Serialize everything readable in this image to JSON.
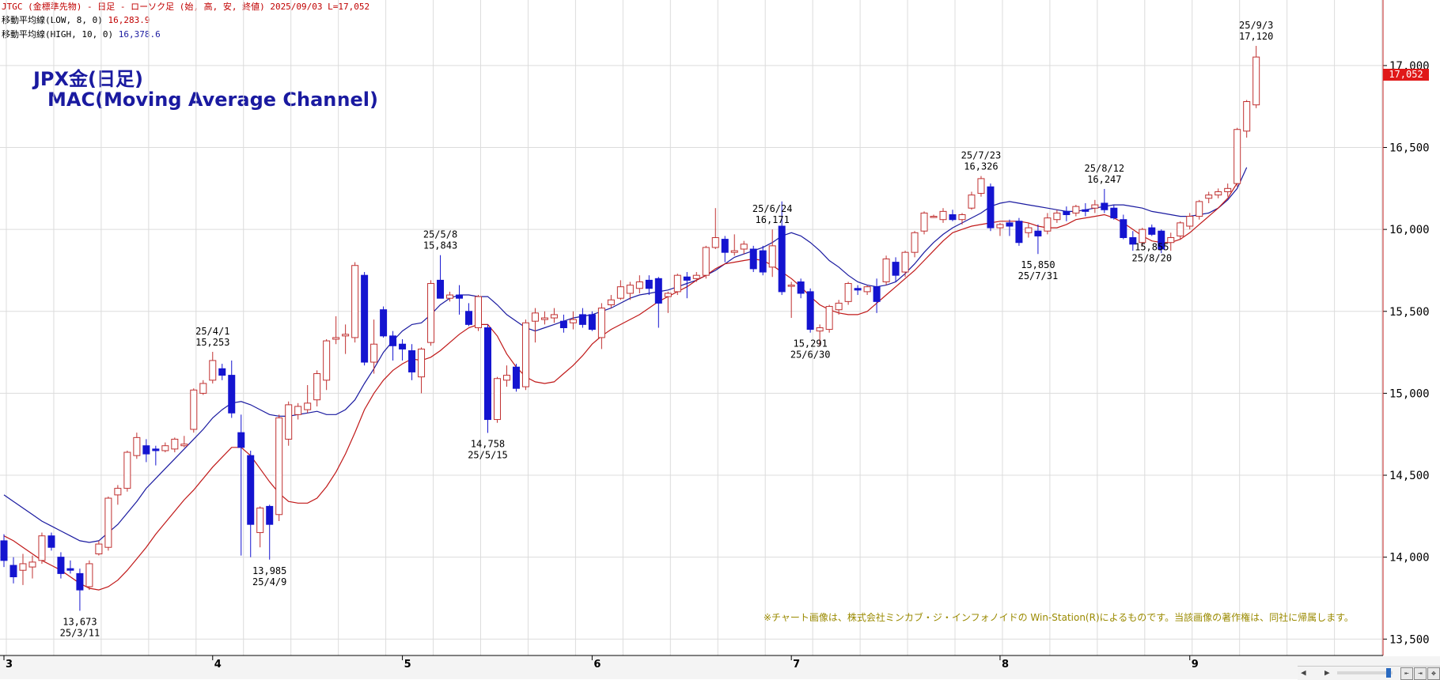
{
  "header": {
    "line1": "JTGC (金標準先物) - 日足 - ローソク足 (始, 高, 安, 終値)  2025/09/03  L=17,052",
    "ma_low_label": "移動平均線(LOW, 8, 0)",
    "ma_low_value": "16,283.9",
    "ma_high_label": "移動平均線(HIGH, 10, 0)",
    "ma_high_value": "16,378.6"
  },
  "title": "JPX金(日足)",
  "subtitle": "MAC(Moving Average Channel)",
  "copyright_note": "※チャート画像は、株式会社ミンカブ・ジ・インフォノイドの Win-Station(R)によるものです。当該画像の著作権は、同社に帰属します。",
  "last_price": "17,052",
  "colors": {
    "up_candle": "#c03030",
    "down_candle": "#1414d0",
    "ma_high": "#1a1aa0",
    "ma_low": "#c01818",
    "grid": "#dcdcdc",
    "header_red": "#c00000",
    "note": "#9a8a00",
    "last_price_bg": "#e01818"
  },
  "chart_data": {
    "type": "candlestick",
    "ylim": [
      13400,
      17400
    ],
    "y_ticks": [
      13500,
      14000,
      14500,
      15000,
      15500,
      16000,
      16500,
      17000
    ],
    "y_tick_labels": [
      "13,500",
      "14,000",
      "14,500",
      "15,000",
      "15,500",
      "16,000",
      "16,500",
      "17,000"
    ],
    "month_labels": [
      {
        "label": "3",
        "index": 0
      },
      {
        "label": "4",
        "index": 22
      },
      {
        "label": "5",
        "index": 42
      },
      {
        "label": "6",
        "index": 62
      },
      {
        "label": "7",
        "index": 83
      },
      {
        "label": "8",
        "index": 105
      },
      {
        "label": "9",
        "index": 125
      }
    ],
    "candles": [
      {
        "o": 14100,
        "h": 14140,
        "l": 13940,
        "c": 13980
      },
      {
        "o": 13950,
        "h": 14000,
        "l": 13840,
        "c": 13880
      },
      {
        "o": 13920,
        "h": 14020,
        "l": 13830,
        "c": 13960
      },
      {
        "o": 13940,
        "h": 14010,
        "l": 13870,
        "c": 13970
      },
      {
        "o": 13980,
        "h": 14150,
        "l": 13960,
        "c": 14130
      },
      {
        "o": 14130,
        "h": 14150,
        "l": 14040,
        "c": 14060
      },
      {
        "o": 14000,
        "h": 14030,
        "l": 13870,
        "c": 13900
      },
      {
        "o": 13930,
        "h": 13980,
        "l": 13900,
        "c": 13920
      },
      {
        "o": 13900,
        "h": 13930,
        "l": 13673,
        "c": 13800
      },
      {
        "o": 13820,
        "h": 13980,
        "l": 13800,
        "c": 13960
      },
      {
        "o": 14020,
        "h": 14100,
        "l": 14010,
        "c": 14080
      },
      {
        "o": 14060,
        "h": 14370,
        "l": 14040,
        "c": 14360
      },
      {
        "o": 14380,
        "h": 14440,
        "l": 14320,
        "c": 14420
      },
      {
        "o": 14420,
        "h": 14650,
        "l": 14400,
        "c": 14640
      },
      {
        "o": 14620,
        "h": 14760,
        "l": 14600,
        "c": 14730
      },
      {
        "o": 14680,
        "h": 14720,
        "l": 14580,
        "c": 14630
      },
      {
        "o": 14660,
        "h": 14680,
        "l": 14560,
        "c": 14650
      },
      {
        "o": 14650,
        "h": 14700,
        "l": 14640,
        "c": 14680
      },
      {
        "o": 14660,
        "h": 14730,
        "l": 14640,
        "c": 14720
      },
      {
        "o": 14680,
        "h": 14740,
        "l": 14670,
        "c": 14690
      },
      {
        "o": 14780,
        "h": 15030,
        "l": 14760,
        "c": 15020
      },
      {
        "o": 15000,
        "h": 15080,
        "l": 14990,
        "c": 15060
      },
      {
        "o": 15080,
        "h": 15253,
        "l": 15060,
        "c": 15200
      },
      {
        "o": 15150,
        "h": 15180,
        "l": 15080,
        "c": 15110
      },
      {
        "o": 15110,
        "h": 15200,
        "l": 14850,
        "c": 14880
      },
      {
        "o": 14760,
        "h": 14870,
        "l": 14010,
        "c": 14670
      },
      {
        "o": 14620,
        "h": 14650,
        "l": 14000,
        "c": 14200
      },
      {
        "o": 14150,
        "h": 14310,
        "l": 14060,
        "c": 14300
      },
      {
        "o": 14310,
        "h": 14320,
        "l": 13985,
        "c": 14200
      },
      {
        "o": 14260,
        "h": 14870,
        "l": 14220,
        "c": 14850
      },
      {
        "o": 14720,
        "h": 14950,
        "l": 14680,
        "c": 14930
      },
      {
        "o": 14870,
        "h": 14940,
        "l": 14840,
        "c": 14920
      },
      {
        "o": 14900,
        "h": 15050,
        "l": 14880,
        "c": 14940
      },
      {
        "o": 14960,
        "h": 15140,
        "l": 14920,
        "c": 15120
      },
      {
        "o": 15080,
        "h": 15330,
        "l": 15020,
        "c": 15320
      },
      {
        "o": 15330,
        "h": 15470,
        "l": 15300,
        "c": 15340
      },
      {
        "o": 15350,
        "h": 15420,
        "l": 15240,
        "c": 15360
      },
      {
        "o": 15340,
        "h": 15800,
        "l": 15310,
        "c": 15780
      },
      {
        "o": 15720,
        "h": 15740,
        "l": 15170,
        "c": 15190
      },
      {
        "o": 15190,
        "h": 15450,
        "l": 15120,
        "c": 15300
      },
      {
        "o": 15510,
        "h": 15530,
        "l": 15340,
        "c": 15350
      },
      {
        "o": 15350,
        "h": 15380,
        "l": 15200,
        "c": 15290
      },
      {
        "o": 15300,
        "h": 15330,
        "l": 15200,
        "c": 15270
      },
      {
        "o": 15260,
        "h": 15300,
        "l": 15080,
        "c": 15130
      },
      {
        "o": 15100,
        "h": 15280,
        "l": 15000,
        "c": 15270
      },
      {
        "o": 15310,
        "h": 15690,
        "l": 15290,
        "c": 15670
      },
      {
        "o": 15690,
        "h": 15843,
        "l": 15600,
        "c": 15580
      },
      {
        "o": 15580,
        "h": 15620,
        "l": 15560,
        "c": 15600
      },
      {
        "o": 15600,
        "h": 15660,
        "l": 15480,
        "c": 15580
      },
      {
        "o": 15500,
        "h": 15550,
        "l": 15410,
        "c": 15420
      },
      {
        "o": 15400,
        "h": 15600,
        "l": 15380,
        "c": 15590
      },
      {
        "o": 15400,
        "h": 15420,
        "l": 14758,
        "c": 14840
      },
      {
        "o": 14840,
        "h": 15100,
        "l": 14820,
        "c": 15090
      },
      {
        "o": 15080,
        "h": 15170,
        "l": 15040,
        "c": 15110
      },
      {
        "o": 15160,
        "h": 15180,
        "l": 15010,
        "c": 15030
      },
      {
        "o": 15040,
        "h": 15450,
        "l": 15020,
        "c": 15430
      },
      {
        "o": 15440,
        "h": 15520,
        "l": 15310,
        "c": 15490
      },
      {
        "o": 15450,
        "h": 15500,
        "l": 15420,
        "c": 15460
      },
      {
        "o": 15460,
        "h": 15520,
        "l": 15430,
        "c": 15480
      },
      {
        "o": 15440,
        "h": 15480,
        "l": 15370,
        "c": 15400
      },
      {
        "o": 15430,
        "h": 15500,
        "l": 15390,
        "c": 15450
      },
      {
        "o": 15480,
        "h": 15520,
        "l": 15400,
        "c": 15420
      },
      {
        "o": 15480,
        "h": 15500,
        "l": 15380,
        "c": 15390
      },
      {
        "o": 15340,
        "h": 15550,
        "l": 15270,
        "c": 15520
      },
      {
        "o": 15540,
        "h": 15600,
        "l": 15520,
        "c": 15570
      },
      {
        "o": 15580,
        "h": 15690,
        "l": 15570,
        "c": 15650
      },
      {
        "o": 15610,
        "h": 15680,
        "l": 15570,
        "c": 15660
      },
      {
        "o": 15640,
        "h": 15720,
        "l": 15610,
        "c": 15680
      },
      {
        "o": 15690,
        "h": 15720,
        "l": 15600,
        "c": 15640
      },
      {
        "o": 15700,
        "h": 15710,
        "l": 15400,
        "c": 15550
      },
      {
        "o": 15590,
        "h": 15620,
        "l": 15490,
        "c": 15610
      },
      {
        "o": 15620,
        "h": 15730,
        "l": 15600,
        "c": 15720
      },
      {
        "o": 15710,
        "h": 15740,
        "l": 15580,
        "c": 15690
      },
      {
        "o": 15700,
        "h": 15740,
        "l": 15680,
        "c": 15720
      },
      {
        "o": 15720,
        "h": 15900,
        "l": 15700,
        "c": 15890
      },
      {
        "o": 15890,
        "h": 16130,
        "l": 15880,
        "c": 15950
      },
      {
        "o": 15940,
        "h": 15960,
        "l": 15800,
        "c": 15860
      },
      {
        "o": 15860,
        "h": 15970,
        "l": 15840,
        "c": 15870
      },
      {
        "o": 15880,
        "h": 15930,
        "l": 15850,
        "c": 15910
      },
      {
        "o": 15880,
        "h": 15900,
        "l": 15740,
        "c": 15760
      },
      {
        "o": 15870,
        "h": 15900,
        "l": 15720,
        "c": 15740
      },
      {
        "o": 15770,
        "h": 16000,
        "l": 15710,
        "c": 15900
      },
      {
        "o": 16020,
        "h": 16171,
        "l": 15600,
        "c": 15620
      },
      {
        "o": 15660,
        "h": 15680,
        "l": 15460,
        "c": 15660
      },
      {
        "o": 15680,
        "h": 15700,
        "l": 15580,
        "c": 15610
      },
      {
        "o": 15620,
        "h": 15640,
        "l": 15370,
        "c": 15390
      },
      {
        "o": 15380,
        "h": 15420,
        "l": 15291,
        "c": 15400
      },
      {
        "o": 15390,
        "h": 15540,
        "l": 15370,
        "c": 15530
      },
      {
        "o": 15510,
        "h": 15570,
        "l": 15480,
        "c": 15550
      },
      {
        "o": 15560,
        "h": 15680,
        "l": 15540,
        "c": 15670
      },
      {
        "o": 15640,
        "h": 15660,
        "l": 15600,
        "c": 15630
      },
      {
        "o": 15620,
        "h": 15660,
        "l": 15600,
        "c": 15650
      },
      {
        "o": 15650,
        "h": 15700,
        "l": 15490,
        "c": 15560
      },
      {
        "o": 15680,
        "h": 15840,
        "l": 15660,
        "c": 15820
      },
      {
        "o": 15800,
        "h": 15830,
        "l": 15680,
        "c": 15720
      },
      {
        "o": 15740,
        "h": 15870,
        "l": 15710,
        "c": 15860
      },
      {
        "o": 15860,
        "h": 15990,
        "l": 15830,
        "c": 15980
      },
      {
        "o": 15990,
        "h": 16110,
        "l": 15970,
        "c": 16100
      },
      {
        "o": 16080,
        "h": 16090,
        "l": 16070,
        "c": 16080
      },
      {
        "o": 16060,
        "h": 16130,
        "l": 16040,
        "c": 16110
      },
      {
        "o": 16090,
        "h": 16120,
        "l": 16050,
        "c": 16060
      },
      {
        "o": 16060,
        "h": 16100,
        "l": 16030,
        "c": 16090
      },
      {
        "o": 16130,
        "h": 16230,
        "l": 16120,
        "c": 16210
      },
      {
        "o": 16220,
        "h": 16326,
        "l": 16200,
        "c": 16310
      },
      {
        "o": 16260,
        "h": 16280,
        "l": 15990,
        "c": 16010
      },
      {
        "o": 16010,
        "h": 16040,
        "l": 15960,
        "c": 16030
      },
      {
        "o": 16040,
        "h": 16060,
        "l": 15960,
        "c": 16020
      },
      {
        "o": 16050,
        "h": 16070,
        "l": 15900,
        "c": 15920
      },
      {
        "o": 15980,
        "h": 16040,
        "l": 15950,
        "c": 16010
      },
      {
        "o": 15990,
        "h": 16030,
        "l": 15850,
        "c": 15960
      },
      {
        "o": 15990,
        "h": 16100,
        "l": 15970,
        "c": 16070
      },
      {
        "o": 16060,
        "h": 16120,
        "l": 16040,
        "c": 16100
      },
      {
        "o": 16110,
        "h": 16140,
        "l": 16050,
        "c": 16090
      },
      {
        "o": 16100,
        "h": 16150,
        "l": 16080,
        "c": 16140
      },
      {
        "o": 16120,
        "h": 16160,
        "l": 16080,
        "c": 16110
      },
      {
        "o": 16130,
        "h": 16180,
        "l": 16100,
        "c": 16150
      },
      {
        "o": 16160,
        "h": 16247,
        "l": 16100,
        "c": 16120
      },
      {
        "o": 16130,
        "h": 16150,
        "l": 16060,
        "c": 16070
      },
      {
        "o": 16060,
        "h": 16090,
        "l": 15940,
        "c": 15950
      },
      {
        "o": 15950,
        "h": 15990,
        "l": 15870,
        "c": 15910
      },
      {
        "o": 15920,
        "h": 16010,
        "l": 15900,
        "c": 16000
      },
      {
        "o": 16010,
        "h": 16030,
        "l": 15960,
        "c": 15970
      },
      {
        "o": 15990,
        "h": 16000,
        "l": 15855,
        "c": 15880
      },
      {
        "o": 15920,
        "h": 15980,
        "l": 15870,
        "c": 15950
      },
      {
        "o": 15960,
        "h": 16050,
        "l": 15940,
        "c": 16040
      },
      {
        "o": 16020,
        "h": 16100,
        "l": 16000,
        "c": 16080
      },
      {
        "o": 16080,
        "h": 16180,
        "l": 16060,
        "c": 16170
      },
      {
        "o": 16190,
        "h": 16230,
        "l": 16160,
        "c": 16210
      },
      {
        "o": 16210,
        "h": 16250,
        "l": 16190,
        "c": 16230
      },
      {
        "o": 16230,
        "h": 16280,
        "l": 16200,
        "c": 16250
      },
      {
        "o": 16280,
        "h": 16620,
        "l": 16260,
        "c": 16610
      },
      {
        "o": 16600,
        "h": 16790,
        "l": 16560,
        "c": 16780
      },
      {
        "o": 16760,
        "h": 17120,
        "l": 16740,
        "c": 17052
      }
    ],
    "ma_high": [
      14380,
      14340,
      14300,
      14260,
      14220,
      14190,
      14160,
      14130,
      14100,
      14090,
      14100,
      14150,
      14200,
      14270,
      14340,
      14420,
      14480,
      14540,
      14600,
      14660,
      14720,
      14780,
      14850,
      14900,
      14940,
      14950,
      14930,
      14900,
      14870,
      14860,
      14860,
      14870,
      14880,
      14890,
      14870,
      14870,
      14900,
      14960,
      15060,
      15150,
      15250,
      15320,
      15380,
      15420,
      15430,
      15480,
      15540,
      15580,
      15600,
      15600,
      15590,
      15590,
      15540,
      15480,
      15440,
      15400,
      15380,
      15400,
      15420,
      15440,
      15460,
      15470,
      15480,
      15500,
      15520,
      15550,
      15580,
      15600,
      15610,
      15620,
      15630,
      15650,
      15670,
      15690,
      15720,
      15750,
      15790,
      15830,
      15850,
      15870,
      15890,
      15920,
      15960,
      15980,
      15960,
      15920,
      15870,
      15810,
      15770,
      15720,
      15680,
      15660,
      15650,
      15660,
      15680,
      15730,
      15790,
      15860,
      15920,
      15970,
      16010,
      16040,
      16070,
      16100,
      16140,
      16160,
      16170,
      16160,
      16150,
      16140,
      16130,
      16120,
      16110,
      16110,
      16120,
      16130,
      16140,
      16150,
      16150,
      16140,
      16130,
      16110,
      16100,
      16090,
      16080,
      16080,
      16090,
      16100,
      16130,
      16180,
      16250,
      16378.6
    ],
    "ma_low": [
      14130,
      14100,
      14060,
      14020,
      13980,
      13950,
      13920,
      13880,
      13840,
      13810,
      13800,
      13820,
      13860,
      13920,
      13990,
      14060,
      14140,
      14210,
      14280,
      14350,
      14410,
      14480,
      14550,
      14610,
      14670,
      14670,
      14620,
      14540,
      14460,
      14390,
      14340,
      14330,
      14330,
      14360,
      14430,
      14520,
      14630,
      14760,
      14900,
      15000,
      15080,
      15140,
      15180,
      15210,
      15200,
      15220,
      15260,
      15310,
      15360,
      15400,
      15420,
      15420,
      15350,
      15240,
      15160,
      15100,
      15070,
      15060,
      15070,
      15120,
      15170,
      15230,
      15300,
      15350,
      15390,
      15420,
      15450,
      15480,
      15520,
      15560,
      15590,
      15620,
      15650,
      15690,
      15720,
      15760,
      15790,
      15800,
      15810,
      15820,
      15810,
      15780,
      15740,
      15700,
      15650,
      15590,
      15540,
      15510,
      15490,
      15480,
      15480,
      15500,
      15550,
      15600,
      15650,
      15700,
      15750,
      15810,
      15870,
      15930,
      15980,
      16000,
      16020,
      16030,
      16040,
      16050,
      16050,
      16050,
      16040,
      16020,
      16010,
      16010,
      16030,
      16060,
      16070,
      16080,
      16090,
      16070,
      16040,
      16000,
      15960,
      15930,
      15920,
      15920,
      15940,
      15980,
      16030,
      16080,
      16130,
      16190,
      16283.9
    ],
    "annotations": [
      {
        "index": 8,
        "position": "below",
        "lines": [
          "13,673",
          "25/3/11"
        ]
      },
      {
        "index": 22,
        "position": "above",
        "lines": [
          "25/4/1",
          "15,253"
        ]
      },
      {
        "index": 28,
        "position": "below",
        "lines": [
          "13,985",
          "25/4/9"
        ]
      },
      {
        "index": 46,
        "position": "above",
        "lines": [
          "25/5/8",
          "15,843"
        ]
      },
      {
        "index": 51,
        "position": "below",
        "lines": [
          "14,758",
          "25/5/15"
        ]
      },
      {
        "index": 81,
        "position": "above",
        "lines": [
          "25/6/24",
          "16,171"
        ]
      },
      {
        "index": 85,
        "position": "below",
        "lines": [
          "15,291",
          "25/6/30"
        ]
      },
      {
        "index": 103,
        "position": "above",
        "lines": [
          "25/7/23",
          "16,326"
        ]
      },
      {
        "index": 109,
        "position": "below",
        "lines": [
          "15,850",
          "25/7/31"
        ]
      },
      {
        "index": 116,
        "position": "above",
        "lines": [
          "25/8/12",
          "16,247"
        ]
      },
      {
        "index": 121,
        "position": "below",
        "lines": [
          "15,855",
          "25/8/20"
        ]
      },
      {
        "index": 132,
        "position": "above",
        "lines": [
          "25/9/3",
          "17,120"
        ]
      }
    ]
  }
}
